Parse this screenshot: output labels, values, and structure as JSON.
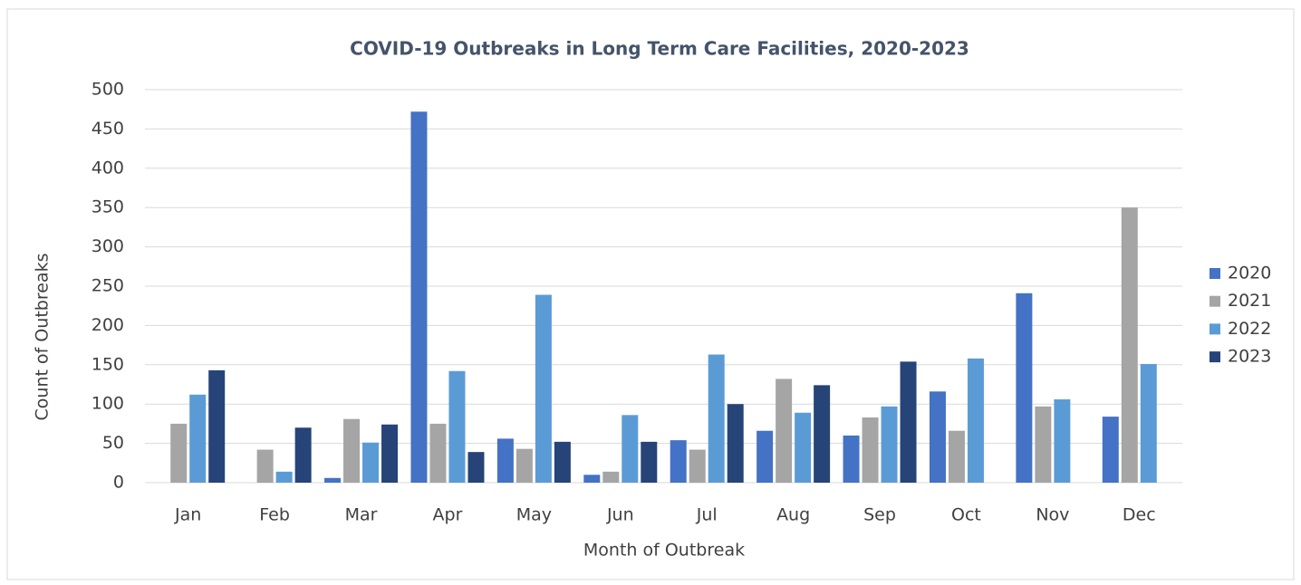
{
  "chart_data": {
    "type": "bar",
    "title": "COVID-19 Outbreaks in Long Term Care Facilities, 2020-2023",
    "x_label": "Month of Outbreak",
    "y_label": "Count of Outbreaks",
    "categories": [
      "Jan",
      "Feb",
      "Mar",
      "Apr",
      "May",
      "Jun",
      "Jul",
      "Aug",
      "Sep",
      "Oct",
      "Nov",
      "Dec"
    ],
    "series": [
      {
        "name": "2020",
        "color": "#4472c4",
        "values": [
          null,
          null,
          6,
          472,
          56,
          10,
          54,
          66,
          60,
          116,
          241,
          84
        ]
      },
      {
        "name": "2021",
        "color": "#a5a5a5",
        "values": [
          75,
          42,
          81,
          75,
          43,
          14,
          42,
          132,
          83,
          66,
          97,
          350
        ]
      },
      {
        "name": "2022",
        "color": "#5b9bd5",
        "values": [
          112,
          14,
          51,
          142,
          239,
          86,
          163,
          89,
          97,
          158,
          106,
          151
        ]
      },
      {
        "name": "2023",
        "color": "#264478",
        "values": [
          143,
          70,
          74,
          39,
          52,
          52,
          100,
          124,
          154,
          null,
          null,
          null
        ]
      }
    ],
    "ylim": [
      0,
      500
    ],
    "yticks": [
      0,
      50,
      100,
      150,
      200,
      250,
      300,
      350,
      400,
      450,
      500
    ],
    "grid": true,
    "legend": "right"
  }
}
